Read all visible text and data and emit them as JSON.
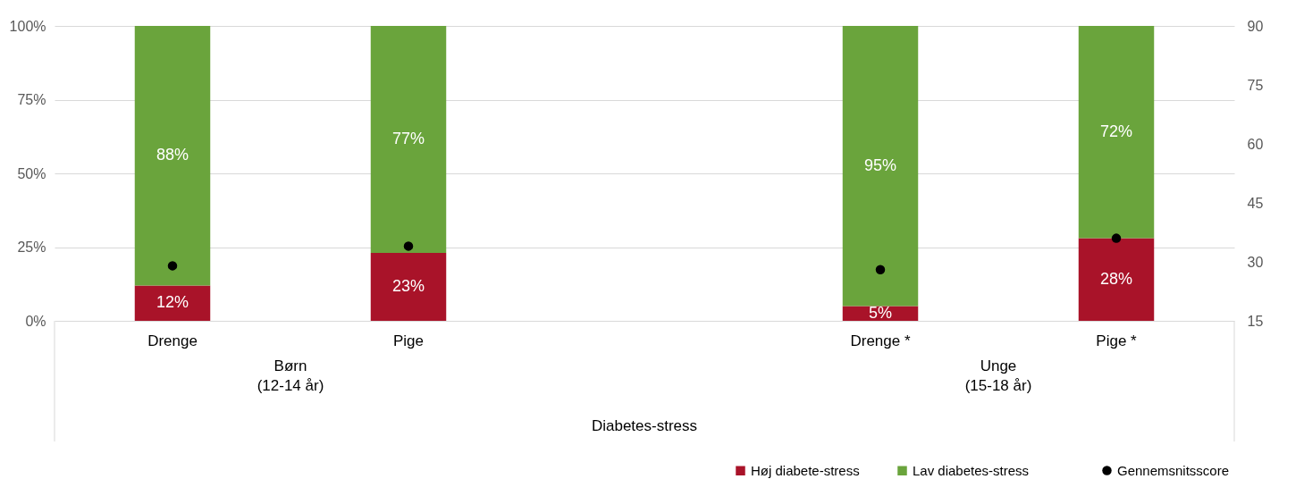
{
  "chart_data": {
    "type": "bar",
    "stacked": true,
    "categories": [
      "Drenge",
      "Pige",
      null,
      "Drenge *",
      "Pige *"
    ],
    "xlabel": "Diabetes-stress",
    "annotations": [
      "Børn\n(12-14 år)",
      "Unge\n(15-18 år)"
    ],
    "series": [
      {
        "name": "Høj diabete-stress",
        "color": "#a91329",
        "values": [
          12,
          23,
          null,
          5,
          28
        ],
        "value_labels": [
          "12%",
          "23%",
          null,
          "5%",
          "28%"
        ]
      },
      {
        "name": "Lav diabetes-stress",
        "color": "#6aa43c",
        "values": [
          88,
          77,
          null,
          95,
          72
        ],
        "value_labels": [
          "88%",
          "77%",
          null,
          "95%",
          "72%"
        ]
      },
      {
        "name": "Gennemsnitsscore",
        "type": "scatter",
        "axis": "y2",
        "color": "#000000",
        "values": [
          29,
          34,
          null,
          28,
          36
        ]
      }
    ],
    "ylim": [
      0,
      100
    ],
    "yticks": [
      {
        "value": 0,
        "label": "0%"
      },
      {
        "value": 25,
        "label": "25%"
      },
      {
        "value": 50,
        "label": "50%"
      },
      {
        "value": 75,
        "label": "75%"
      },
      {
        "value": 100,
        "label": "100%"
      }
    ],
    "y2lim": [
      15,
      90
    ],
    "y2ticks": [
      15,
      30,
      45,
      60,
      75,
      90
    ],
    "grid": "y",
    "legend": "bottom right",
    "marker": "circle"
  }
}
